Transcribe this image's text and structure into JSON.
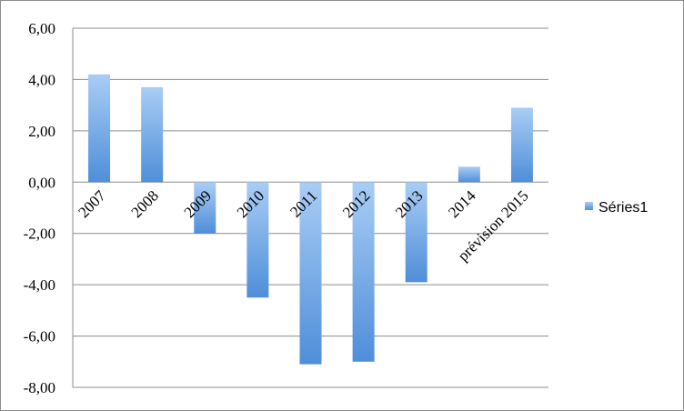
{
  "chart_data": {
    "type": "bar",
    "categories": [
      "2007",
      "2008",
      "2009",
      "2010",
      "2011",
      "2012",
      "2013",
      "2014",
      "prévision 2015"
    ],
    "series": [
      {
        "name": "Séries1",
        "values": [
          4.2,
          3.7,
          -2.0,
          -4.5,
          -7.1,
          -7.0,
          -3.9,
          0.6,
          2.9
        ]
      }
    ],
    "yticks": [
      "6,00",
      "4,00",
      "2,00",
      "0,00",
      "-2,00",
      "-4,00",
      "-6,00",
      "-8,00"
    ],
    "ylim": [
      -8,
      6
    ],
    "grid": true,
    "legend_position": "right",
    "bar_color_light": "#a9cdf5",
    "bar_color_dark": "#4f8ed9"
  }
}
